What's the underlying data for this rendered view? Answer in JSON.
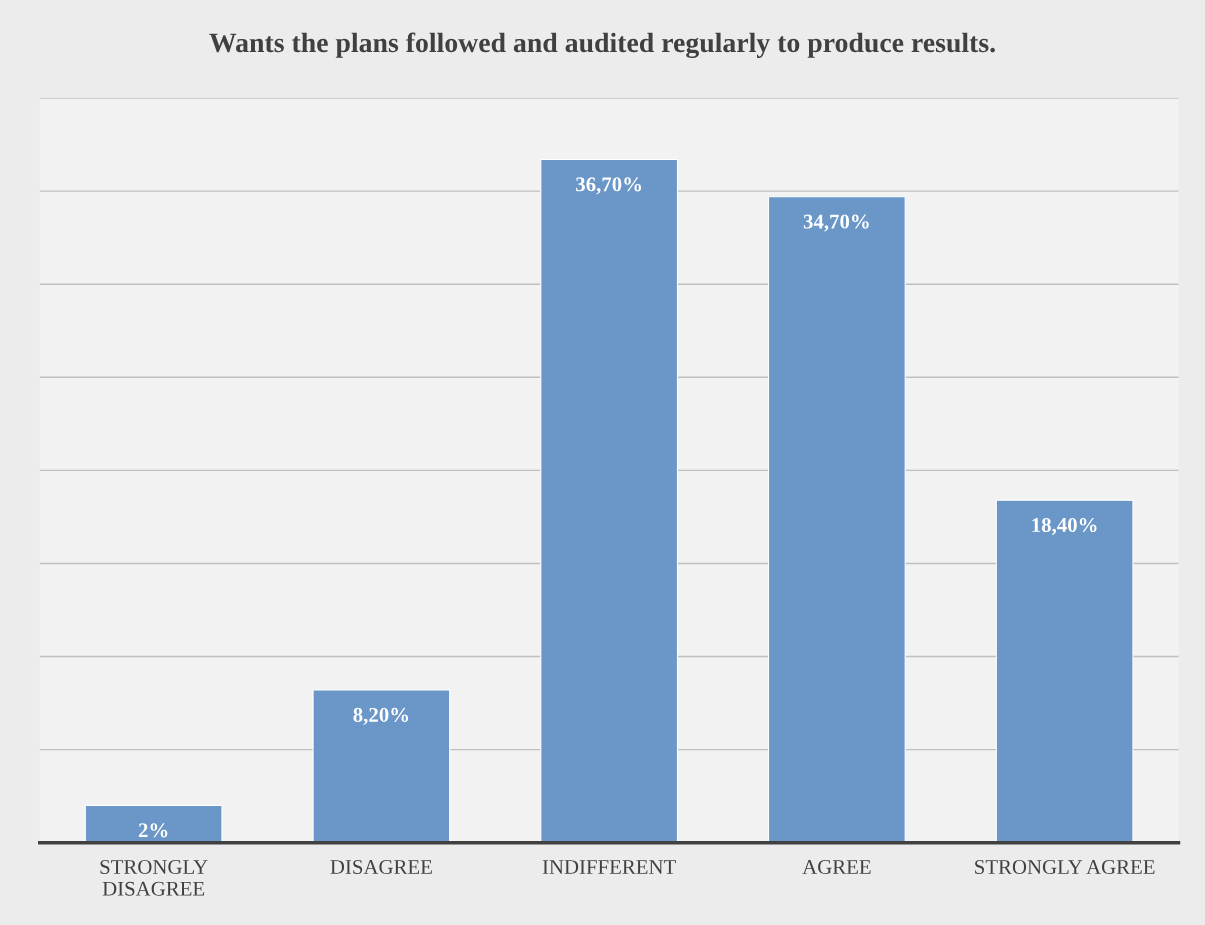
{
  "chart_data": {
    "type": "bar",
    "title": "Wants the plans followed and audited regularly to produce results.",
    "categories": [
      "STRONGLY\nDISAGREE",
      "DISAGREE",
      "INDIFFERENT",
      "AGREE",
      "STRONGLY AGREE"
    ],
    "values": [
      2,
      8.2,
      36.7,
      34.7,
      18.4
    ],
    "value_labels": [
      "2%",
      "8,20%",
      "36,70%",
      "34,70%",
      "18,40%"
    ],
    "color": "#6a96c8",
    "ylim": [
      0,
      40
    ],
    "yticks": [
      {
        "value": 0,
        "label": null
      },
      {
        "value": 5,
        "label": null
      },
      {
        "value": 10,
        "label": null
      },
      {
        "value": 15,
        "label": null
      },
      {
        "value": 20,
        "label": null
      },
      {
        "value": 25,
        "label": null
      },
      {
        "value": 30,
        "label": null
      },
      {
        "value": 35,
        "label": null
      },
      {
        "value": 40,
        "label": null
      }
    ],
    "tick_labels": "x",
    "grid": "y"
  }
}
